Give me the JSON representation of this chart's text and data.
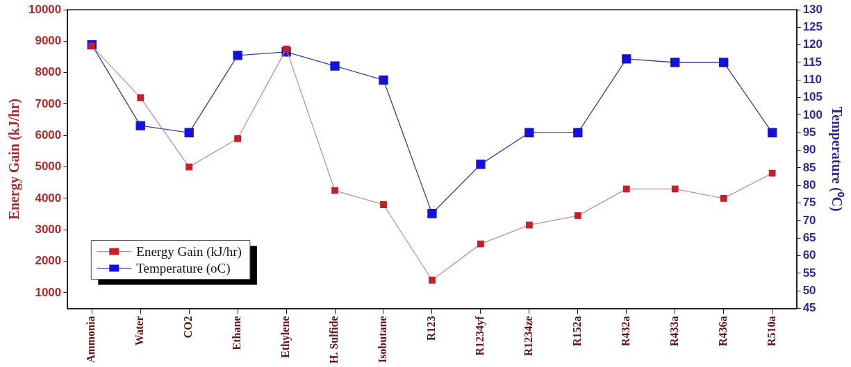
{
  "chart_data": {
    "type": "line",
    "categories": [
      "Ammonia",
      "Water",
      "CO2",
      "Ethane",
      "Ethylene",
      "H. Sulfide",
      "Isobutane",
      "R123",
      "R1234yf",
      "R1234ze",
      "R152a",
      "R432a",
      "R433a",
      "R436a",
      "R510a"
    ],
    "series": [
      {
        "name": "Energy Gain (kJ/hr)",
        "color": "#c42126",
        "values": [
          8850,
          7200,
          5000,
          5900,
          8750,
          4250,
          3800,
          1400,
          2550,
          3150,
          3450,
          4300,
          4300,
          4000,
          4800
        ]
      },
      {
        "name": "Temperature (oC)",
        "color": "#1212d8",
        "axis": "y2",
        "values": [
          120,
          97,
          95,
          117,
          118,
          114,
          110,
          72,
          86,
          95,
          95,
          116,
          115,
          115,
          95
        ]
      }
    ],
    "ylabel": "Energy Gain (kJ/hr)",
    "y2label": "Temperature (⁰C)",
    "ylim": [
      500,
      10000
    ],
    "yticks": [
      1000,
      2000,
      3000,
      4000,
      5000,
      6000,
      7000,
      8000,
      9000,
      10000
    ],
    "y2lim": [
      45,
      130
    ],
    "y2ticks": [
      45,
      50,
      55,
      60,
      65,
      70,
      75,
      80,
      85,
      90,
      95,
      100,
      105,
      110,
      115,
      120,
      125,
      130
    ],
    "grid": false,
    "legend": "bottom left",
    "marker": "square",
    "line_style": "solid"
  }
}
